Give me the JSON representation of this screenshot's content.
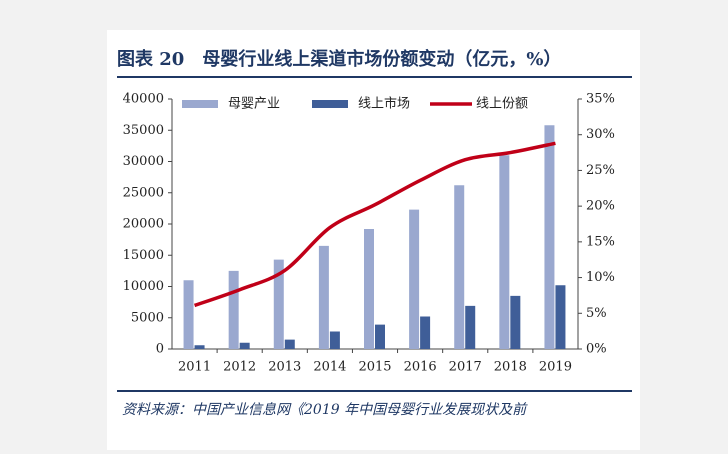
{
  "chart_data": {
    "type": "bar-line",
    "title": "图表 20　母婴行业线上渠道市场份额变动（亿元，%）",
    "source": "资料来源：中国产业信息网《2019 年中国母婴行业发展现状及前",
    "categories": [
      "2011",
      "2012",
      "2013",
      "2014",
      "2015",
      "2016",
      "2017",
      "2018",
      "2019"
    ],
    "series": [
      {
        "name": "母婴产业",
        "type": "bar",
        "color": "#9aa8cf",
        "values": [
          11000,
          12500,
          14300,
          16500,
          19200,
          22300,
          26200,
          31000,
          35800
        ]
      },
      {
        "name": "线上市场",
        "type": "bar",
        "color": "#3f5e98",
        "values": [
          600,
          1000,
          1500,
          2800,
          3900,
          5200,
          6900,
          8500,
          10200
        ]
      },
      {
        "name": "线上份额",
        "type": "line",
        "axis": "y2",
        "color": "#c00018",
        "values": [
          6.1,
          8.3,
          11,
          17,
          20.2,
          23.6,
          26.5,
          27.5,
          28.8
        ]
      }
    ],
    "ylim": [
      0,
      40000
    ],
    "yticks": [
      0,
      5000,
      10000,
      15000,
      20000,
      25000,
      30000,
      35000,
      40000
    ],
    "y2lim": [
      0,
      35
    ],
    "y2ticks": [
      {
        "value": 0,
        "label": "0%"
      },
      {
        "value": 5,
        "label": "5%"
      },
      {
        "value": 10,
        "label": "10%"
      },
      {
        "value": 15,
        "label": "15%"
      },
      {
        "value": 20,
        "label": "20%"
      },
      {
        "value": 25,
        "label": "25%"
      },
      {
        "value": 30,
        "label": "30%"
      },
      {
        "value": 35,
        "label": "35%"
      }
    ],
    "legend": "top",
    "grid": false
  }
}
